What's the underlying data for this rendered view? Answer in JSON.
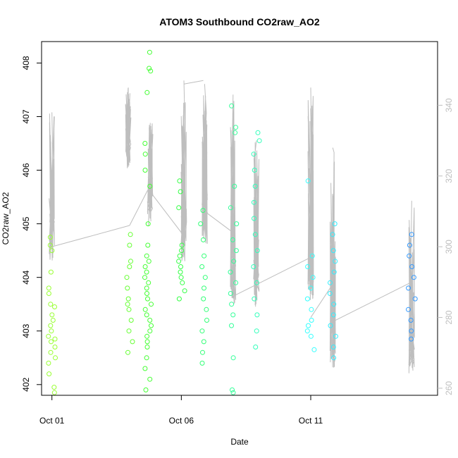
{
  "chart_data": {
    "type": "scatter",
    "title": "ATOM3 Southbound CO2raw_AO2",
    "xlabel": "Date",
    "ylabel": "CO2raw_AO2",
    "x_ticks": [
      "Oct 01",
      "Oct 06",
      "Oct 11"
    ],
    "x_tick_days": [
      1,
      6,
      11
    ],
    "xlim_days": [
      0.6,
      15.9
    ],
    "ylim": [
      401.8,
      408.4
    ],
    "y_ticks": [
      402,
      403,
      404,
      405,
      406,
      407,
      408
    ],
    "y2lim": [
      258,
      358
    ],
    "y2_ticks": [
      260,
      280,
      300,
      320,
      340
    ],
    "grid": false,
    "legend": "none",
    "scatter_series": [
      {
        "day": 1.0,
        "color": "#99ff33",
        "values": [
          401.85,
          401.95,
          402.2,
          402.4,
          402.5,
          402.6,
          402.7,
          402.8,
          402.85,
          402.9,
          403.0,
          403.1,
          403.2,
          403.3,
          403.45,
          403.5,
          403.7,
          403.8,
          404.1,
          404.5,
          404.6,
          404.75
        ]
      },
      {
        "day": 4.0,
        "color": "#66ff33",
        "values": [
          402.6,
          402.8,
          403.0,
          403.2,
          403.4,
          403.5,
          403.6,
          403.8,
          404.0,
          404.2,
          404.3,
          404.6,
          404.8
        ]
      },
      {
        "day": 4.7,
        "color": "#44ff33",
        "values": [
          401.9,
          402.1,
          402.3,
          402.5,
          402.7,
          402.8,
          402.9,
          403.0,
          403.1,
          403.2,
          403.3,
          403.4,
          403.5,
          403.6,
          403.7,
          403.8,
          403.9,
          404.0,
          404.1,
          404.2,
          404.3,
          404.4,
          404.6,
          405.0,
          405.7,
          406.0,
          406.3,
          406.5,
          407.45,
          407.85,
          407.9,
          408.2
        ]
      },
      {
        "day": 6.0,
        "color": "#33ff44",
        "values": [
          403.6,
          403.75,
          403.9,
          404.0,
          404.1,
          404.2,
          404.3,
          404.4,
          404.5,
          404.6,
          405.3,
          405.6,
          405.8
        ]
      },
      {
        "day": 6.85,
        "color": "#33ff77",
        "values": [
          402.4,
          402.6,
          402.8,
          403.0,
          403.2,
          403.4,
          403.6,
          403.8,
          404.0,
          404.2,
          404.4,
          404.7,
          405.0,
          405.25
        ]
      },
      {
        "day": 8.0,
        "color": "#33ff99",
        "values": [
          401.85,
          401.9,
          402.5,
          403.1,
          403.3,
          403.5,
          403.7,
          403.9,
          404.1,
          404.3,
          404.5,
          404.7,
          405.0,
          405.3,
          405.7,
          406.7,
          406.8,
          407.2
        ]
      },
      {
        "day": 8.9,
        "color": "#33ffbb",
        "values": [
          402.7,
          403.0,
          403.3,
          403.6,
          403.9,
          404.2,
          404.5,
          404.8,
          405.1,
          405.4,
          405.7,
          406.0,
          406.3,
          406.55,
          406.7
        ]
      },
      {
        "day": 11.0,
        "color": "#33ffff",
        "values": [
          402.65,
          402.9,
          403.0,
          403.1,
          403.2,
          403.4,
          403.6,
          403.8,
          404.0,
          404.2,
          404.4,
          405.8
        ]
      },
      {
        "day": 11.85,
        "color": "#33eeff",
        "values": [
          402.5,
          402.7,
          402.9,
          403.1,
          403.3,
          403.5,
          403.7,
          403.9,
          404.1,
          404.3,
          404.5,
          404.8,
          405.0
        ]
      },
      {
        "day": 14.9,
        "color": "#3399ff",
        "values": [
          402.85,
          403.0,
          403.2,
          403.4,
          403.6,
          403.8,
          404.0,
          404.2,
          404.4,
          404.6,
          404.8
        ]
      }
    ],
    "secondary_series": {
      "color": "#bebebe",
      "axis": "right",
      "bursts": [
        {
          "day": 1.0,
          "base": 300,
          "peak": 338
        },
        {
          "day": 3.95,
          "base": 326,
          "peak": 345
        },
        {
          "day": 4.8,
          "base": 310,
          "peak": 335
        },
        {
          "day": 6.1,
          "base": 300,
          "peak": 347
        },
        {
          "day": 6.9,
          "base": 305,
          "peak": 346
        },
        {
          "day": 8.0,
          "base": 288,
          "peak": 343
        },
        {
          "day": 8.9,
          "base": 287,
          "peak": 330
        },
        {
          "day": 11.0,
          "base": 289,
          "peak": 345
        },
        {
          "day": 11.85,
          "base": 270,
          "peak": 328
        },
        {
          "day": 14.9,
          "base": 268,
          "peak": 313
        }
      ],
      "connectors": [
        [
          1.0,
          300,
          4.0,
          306
        ],
        [
          4.0,
          306,
          4.7,
          316
        ],
        [
          4.75,
          316,
          6.0,
          304
        ],
        [
          6.1,
          346,
          6.85,
          347
        ],
        [
          6.9,
          310,
          8.0,
          304
        ],
        [
          8.0,
          286,
          11.0,
          297
        ],
        [
          11.0,
          280,
          11.9,
          290
        ],
        [
          11.9,
          279,
          14.9,
          290
        ]
      ]
    }
  }
}
